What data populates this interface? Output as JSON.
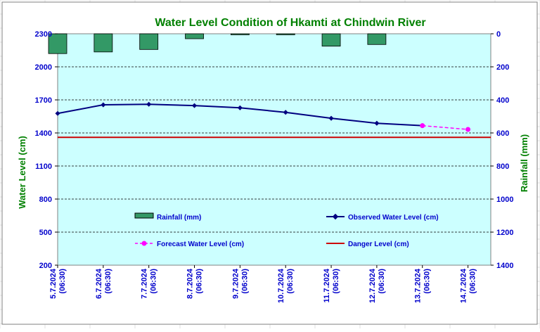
{
  "chart_data": {
    "type": "line",
    "title": "Water Level Condition of Hkamti at Chindwin River",
    "ylabel": "Water Level (cm)",
    "y2label": "Rainfall (mm)",
    "ylim": [
      200,
      2300
    ],
    "y2lim": [
      0,
      1400
    ],
    "y2_inverted": true,
    "yticks": [
      "2300",
      "2000",
      "1700",
      "1400",
      "1100",
      "800",
      "500",
      "200"
    ],
    "y2ticks": [
      "0",
      "200",
      "400",
      "600",
      "800",
      "1000",
      "1200",
      "1400"
    ],
    "categories": [
      [
        "5.7.2024",
        "(06:30)"
      ],
      [
        "6.7.2024",
        "(06:30)"
      ],
      [
        "7.7.2024",
        "(06:30)"
      ],
      [
        "8.7.2024",
        "(06:30)"
      ],
      [
        "9.7.2024",
        "(06:30)"
      ],
      [
        "10.7.2024",
        "(06:30)"
      ],
      [
        "11.7.2024",
        "(06:30)"
      ],
      [
        "12.7.2024",
        "(06:30)"
      ],
      [
        "13.7.2024",
        "(06:30)"
      ],
      [
        "14.7.2024",
        "(06:30)"
      ]
    ],
    "rainfall_mm": [
      120,
      110,
      95,
      30,
      5,
      5,
      75,
      65,
      0,
      0
    ],
    "observed_water_level_cm": [
      1577,
      1655,
      1660,
      1648,
      1628,
      1587,
      1533,
      1488,
      1466,
      null
    ],
    "forecast_water_level_cm": [
      null,
      null,
      null,
      null,
      null,
      null,
      null,
      null,
      1466,
      1432
    ],
    "danger_level_cm": 1360,
    "legend": {
      "rainfall": "Rainfall (mm)",
      "observed": "Observed Water Level (cm)",
      "forecast": "Forecast Water Level (cm)",
      "danger": "Danger Level (cm)"
    },
    "legend_placement": "inside-lower",
    "grid": true,
    "colors": {
      "plot_bg": "#ccffff",
      "title": "#008000",
      "axis_label": "#008000",
      "category_label": "#0000cc",
      "tick_label": "#0000cc",
      "rainfall_fill": "#339966",
      "observed": "#000080",
      "forecast": "#ff00ff",
      "danger": "#cc0000",
      "legend_text": "#0000cc"
    }
  }
}
